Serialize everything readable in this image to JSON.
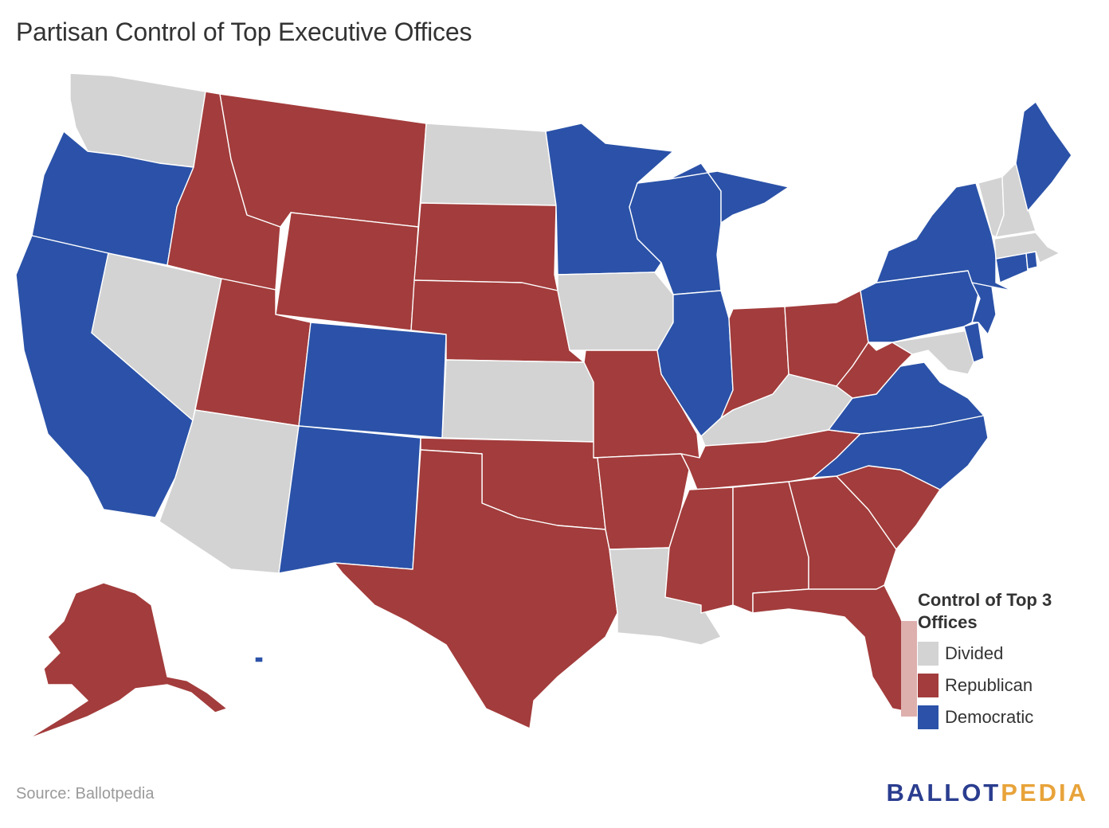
{
  "title": "Partisan Control of Top Executive Offices",
  "colors": {
    "divided": "#d3d3d3",
    "republican": "#a33c3c",
    "democratic": "#2b52a8",
    "florida_inset": "#ddb0ae"
  },
  "legend": {
    "title": "Control of Top 3 Offices",
    "items": [
      {
        "label": "Divided",
        "status": "divided"
      },
      {
        "label": "Republican",
        "status": "republican"
      },
      {
        "label": "Democratic",
        "status": "democratic"
      }
    ]
  },
  "source": "Source: Ballotpedia",
  "logo": {
    "part1": "BALLOT",
    "part2": "PEDIA"
  },
  "states": [
    {
      "name": "Washington",
      "status": "divided"
    },
    {
      "name": "Oregon",
      "status": "democratic"
    },
    {
      "name": "California",
      "status": "democratic"
    },
    {
      "name": "Nevada",
      "status": "divided"
    },
    {
      "name": "Idaho",
      "status": "republican"
    },
    {
      "name": "Montana",
      "status": "republican"
    },
    {
      "name": "Wyoming",
      "status": "republican"
    },
    {
      "name": "Utah",
      "status": "republican"
    },
    {
      "name": "Arizona",
      "status": "divided"
    },
    {
      "name": "Colorado",
      "status": "democratic"
    },
    {
      "name": "New Mexico",
      "status": "democratic"
    },
    {
      "name": "North Dakota",
      "status": "divided"
    },
    {
      "name": "South Dakota",
      "status": "republican"
    },
    {
      "name": "Nebraska",
      "status": "republican"
    },
    {
      "name": "Kansas",
      "status": "divided"
    },
    {
      "name": "Oklahoma",
      "status": "republican"
    },
    {
      "name": "Texas",
      "status": "republican"
    },
    {
      "name": "Minnesota",
      "status": "democratic"
    },
    {
      "name": "Iowa",
      "status": "divided"
    },
    {
      "name": "Missouri",
      "status": "republican"
    },
    {
      "name": "Arkansas",
      "status": "republican"
    },
    {
      "name": "Louisiana",
      "status": "divided"
    },
    {
      "name": "Wisconsin",
      "status": "democratic"
    },
    {
      "name": "Illinois",
      "status": "democratic"
    },
    {
      "name": "Michigan",
      "status": "democratic"
    },
    {
      "name": "Indiana",
      "status": "republican"
    },
    {
      "name": "Ohio",
      "status": "republican"
    },
    {
      "name": "Kentucky",
      "status": "divided"
    },
    {
      "name": "Tennessee",
      "status": "republican"
    },
    {
      "name": "Mississippi",
      "status": "republican"
    },
    {
      "name": "Alabama",
      "status": "republican"
    },
    {
      "name": "Georgia",
      "status": "republican"
    },
    {
      "name": "Florida",
      "status": "republican"
    },
    {
      "name": "South Carolina",
      "status": "republican"
    },
    {
      "name": "North Carolina",
      "status": "democratic"
    },
    {
      "name": "Virginia",
      "status": "democratic"
    },
    {
      "name": "West Virginia",
      "status": "republican"
    },
    {
      "name": "Maryland",
      "status": "divided"
    },
    {
      "name": "Delaware",
      "status": "democratic"
    },
    {
      "name": "Pennsylvania",
      "status": "democratic"
    },
    {
      "name": "New Jersey",
      "status": "democratic"
    },
    {
      "name": "New York",
      "status": "democratic"
    },
    {
      "name": "Connecticut",
      "status": "democratic"
    },
    {
      "name": "Rhode Island",
      "status": "democratic"
    },
    {
      "name": "Massachusetts",
      "status": "divided"
    },
    {
      "name": "Vermont",
      "status": "divided"
    },
    {
      "name": "New Hampshire",
      "status": "divided"
    },
    {
      "name": "Maine",
      "status": "democratic"
    },
    {
      "name": "Alaska",
      "status": "republican"
    },
    {
      "name": "Hawaii",
      "status": "democratic"
    }
  ]
}
